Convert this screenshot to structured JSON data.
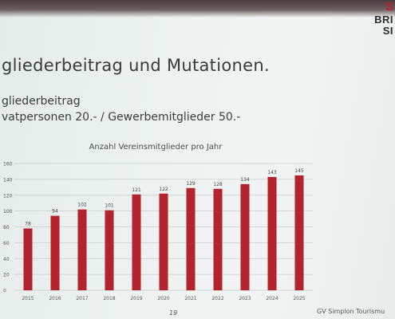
{
  "slide": {
    "title": "gliederbeitrag und Mutationen.",
    "subtitle": "gliederbeitrag",
    "fees_line": "vatpersonen 20.- / Gewerbemitglieder 50.-",
    "page_number": "19",
    "footer_org": "GV Simplon Tourismu",
    "logo": {
      "mark": "S",
      "line1": "BRI",
      "line2": "SI"
    }
  },
  "colors": {
    "bar": "#b3232d",
    "grid": "#c9cfcc",
    "axis_text": "#555555"
  },
  "chart_data": {
    "type": "bar",
    "title": "Anzahl Vereinsmitglieder pro Jahr",
    "categories": [
      "2015",
      "2016",
      "2017",
      "2018",
      "2019",
      "2020",
      "2021",
      "2022",
      "2023",
      "2024",
      "2025"
    ],
    "values": [
      78,
      94,
      102,
      101,
      121,
      122,
      129,
      128,
      134,
      143,
      145
    ],
    "data_labels": [
      "78",
      "94",
      "102",
      "101",
      "121",
      "122",
      "129",
      "128",
      "134",
      "143",
      "145"
    ],
    "ylim": [
      0,
      160
    ],
    "yticks": [
      0,
      20,
      40,
      60,
      80,
      100,
      120,
      140,
      160
    ],
    "ytick_labels": [
      "0",
      "20",
      "40",
      "60",
      "80",
      "100",
      "120",
      "140",
      "160"
    ],
    "grid": true,
    "xlabel": "",
    "ylabel": ""
  }
}
